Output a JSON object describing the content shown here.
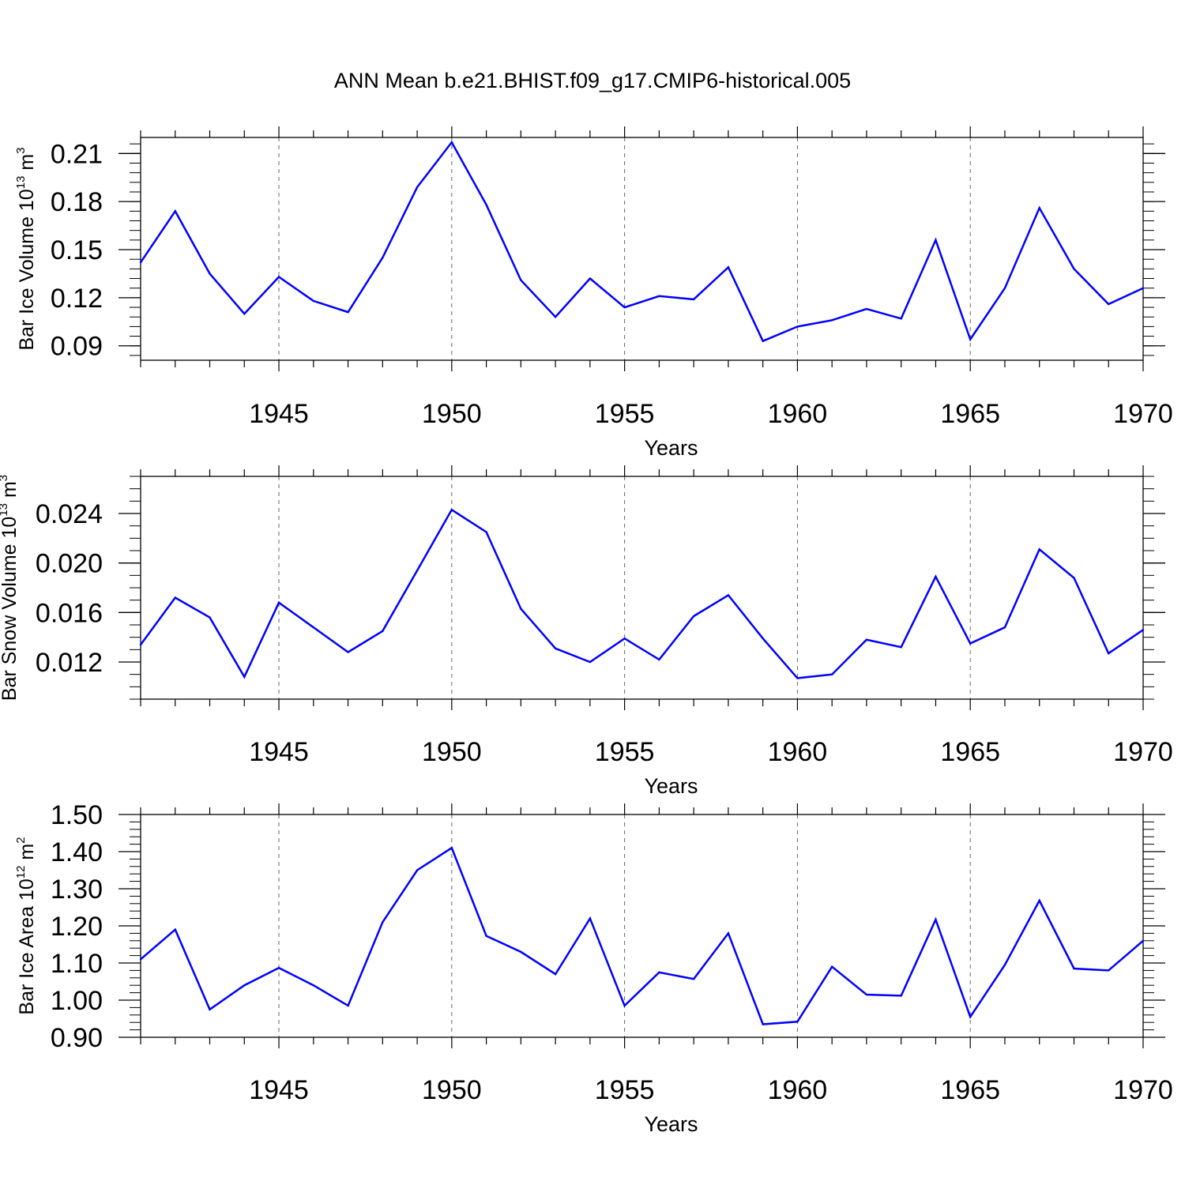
{
  "figure": {
    "title": "ANN Mean b.e21.BHIST.f09_g17.CMIP6-historical.005",
    "line_color": "#0000ff"
  },
  "chart_data": [
    {
      "type": "line",
      "ylabel": {
        "base": "Bar Ice Volume 10",
        "exp1": "13",
        "unit": " m",
        "exp2": "3"
      },
      "xlabel": "Years",
      "xlim": [
        1941,
        1970
      ],
      "ylim": [
        0.081,
        0.22
      ],
      "xticks": [
        1945,
        1950,
        1955,
        1960,
        1965,
        1970
      ],
      "xtick_labels": [
        "1945",
        "1950",
        "1955",
        "1960",
        "1965",
        "1970"
      ],
      "yticks": [
        0.09,
        0.12,
        0.15,
        0.18,
        0.21
      ],
      "ytick_labels": [
        "0.09",
        "0.12",
        "0.15",
        "0.18",
        "0.21"
      ],
      "yminor": 0.006,
      "grid": "vertical dashed at major x ticks",
      "x": [
        1941,
        1942,
        1943,
        1944,
        1945,
        1946,
        1947,
        1948,
        1949,
        1950,
        1951,
        1952,
        1953,
        1954,
        1955,
        1956,
        1957,
        1958,
        1959,
        1960,
        1961,
        1962,
        1963,
        1964,
        1965,
        1966,
        1967,
        1968,
        1969,
        1970
      ],
      "series": [
        {
          "values": [
            0.142,
            0.174,
            0.135,
            0.11,
            0.133,
            0.118,
            0.111,
            0.145,
            0.189,
            0.217,
            0.178,
            0.131,
            0.108,
            0.132,
            0.114,
            0.121,
            0.119,
            0.139,
            0.093,
            0.102,
            0.106,
            0.113,
            0.107,
            0.156,
            0.094,
            0.126,
            0.176,
            0.138,
            0.116,
            0.126
          ]
        }
      ]
    },
    {
      "type": "line",
      "ylabel": {
        "base": "Bar Snow Volume 10",
        "exp1": "13",
        "unit": " m",
        "exp2": "3"
      },
      "xlabel": "Years",
      "xlim": [
        1941,
        1970
      ],
      "ylim": [
        0.009,
        0.027
      ],
      "xticks": [
        1945,
        1950,
        1955,
        1960,
        1965,
        1970
      ],
      "xtick_labels": [
        "1945",
        "1950",
        "1955",
        "1960",
        "1965",
        "1970"
      ],
      "yticks": [
        0.012,
        0.016,
        0.02,
        0.024
      ],
      "ytick_labels": [
        "0.012",
        "0.016",
        "0.020",
        "0.024"
      ],
      "yminor": 0.001,
      "grid": "vertical dashed at major x ticks",
      "x": [
        1941,
        1942,
        1943,
        1944,
        1945,
        1946,
        1947,
        1948,
        1949,
        1950,
        1951,
        1952,
        1953,
        1954,
        1955,
        1956,
        1957,
        1958,
        1959,
        1960,
        1961,
        1962,
        1963,
        1964,
        1965,
        1966,
        1967,
        1968,
        1969,
        1970
      ],
      "series": [
        {
          "values": [
            0.0134,
            0.0172,
            0.0156,
            0.0108,
            0.0168,
            0.0148,
            0.0128,
            0.0145,
            0.0194,
            0.0243,
            0.0225,
            0.0163,
            0.0131,
            0.012,
            0.0139,
            0.0122,
            0.0157,
            0.0174,
            0.0139,
            0.0107,
            0.011,
            0.0138,
            0.0132,
            0.0189,
            0.0135,
            0.0148,
            0.0211,
            0.0188,
            0.0127,
            0.0146
          ]
        }
      ]
    },
    {
      "type": "line",
      "ylabel": {
        "base": "Bar Ice Area 10",
        "exp1": "12",
        "unit": " m",
        "exp2": "2"
      },
      "xlabel": "Years",
      "xlim": [
        1941,
        1970
      ],
      "ylim": [
        0.9,
        1.5
      ],
      "xticks": [
        1945,
        1950,
        1955,
        1960,
        1965,
        1970
      ],
      "xtick_labels": [
        "1945",
        "1950",
        "1955",
        "1960",
        "1965",
        "1970"
      ],
      "yticks": [
        0.9,
        1.0,
        1.1,
        1.2,
        1.3,
        1.4,
        1.5
      ],
      "ytick_labels": [
        "0.90",
        "1.00",
        "1.10",
        "1.20",
        "1.30",
        "1.40",
        "1.50"
      ],
      "yminor": 0.02,
      "grid": "vertical dashed at major x ticks",
      "x": [
        1941,
        1942,
        1943,
        1944,
        1945,
        1946,
        1947,
        1948,
        1949,
        1950,
        1951,
        1952,
        1953,
        1954,
        1955,
        1956,
        1957,
        1958,
        1959,
        1960,
        1961,
        1962,
        1963,
        1964,
        1965,
        1966,
        1967,
        1968,
        1969,
        1970
      ],
      "series": [
        {
          "values": [
            1.11,
            1.19,
            0.975,
            1.04,
            1.087,
            1.04,
            0.985,
            1.21,
            1.35,
            1.41,
            1.173,
            1.13,
            1.07,
            1.22,
            0.985,
            1.075,
            1.057,
            1.18,
            0.935,
            0.942,
            1.09,
            1.015,
            1.012,
            1.217,
            0.955,
            1.095,
            1.268,
            1.085,
            1.08,
            1.16
          ]
        }
      ]
    }
  ]
}
